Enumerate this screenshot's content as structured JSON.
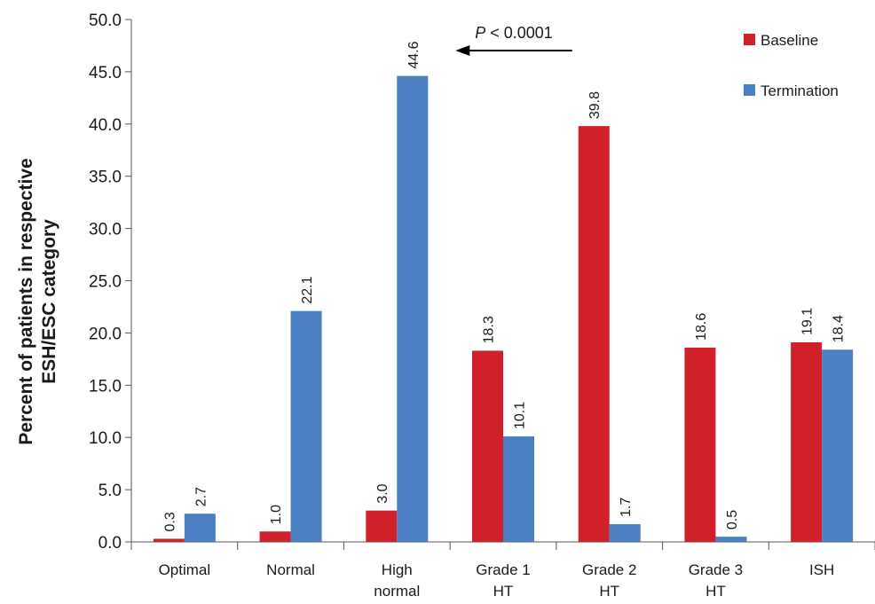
{
  "chart_data": {
    "type": "bar",
    "categories": [
      "Optimal",
      "Normal",
      "High\nnormal",
      "Grade 1\nHT",
      "Grade 2\nHT",
      "Grade 3\nHT",
      "ISH"
    ],
    "series": [
      {
        "name": "Baseline",
        "color": "#d0202a",
        "values": [
          0.3,
          1.0,
          3.0,
          18.3,
          39.8,
          18.6,
          19.1
        ]
      },
      {
        "name": "Termination",
        "color": "#4a7fc1",
        "values": [
          2.7,
          22.1,
          44.6,
          10.1,
          1.7,
          0.5,
          18.4
        ]
      }
    ],
    "data_labels_baseline": [
      "0.3",
      "1.0",
      "3.0",
      "18.3",
      "39.8",
      "18.6",
      "19.1"
    ],
    "data_labels_termination": [
      "2.7",
      "22.1",
      "44.6",
      "10.1",
      "1.7",
      "0.5",
      "18.4"
    ],
    "yticks": [
      "0.0",
      "5.0",
      "10.0",
      "15.0",
      "20.0",
      "25.0",
      "30.0",
      "35.0",
      "40.0",
      "45.0",
      "50.0"
    ],
    "ylabel_line1": "Percent of patients in respective",
    "ylabel_line2": "ESH/ESC category",
    "ylim": [
      0,
      50
    ],
    "grid": false,
    "legend_position": "top-right",
    "annotation": {
      "p_italic": "P",
      "p_rest": " < 0.0001",
      "arrow_from_category": 4,
      "arrow_to_category": 2
    }
  }
}
